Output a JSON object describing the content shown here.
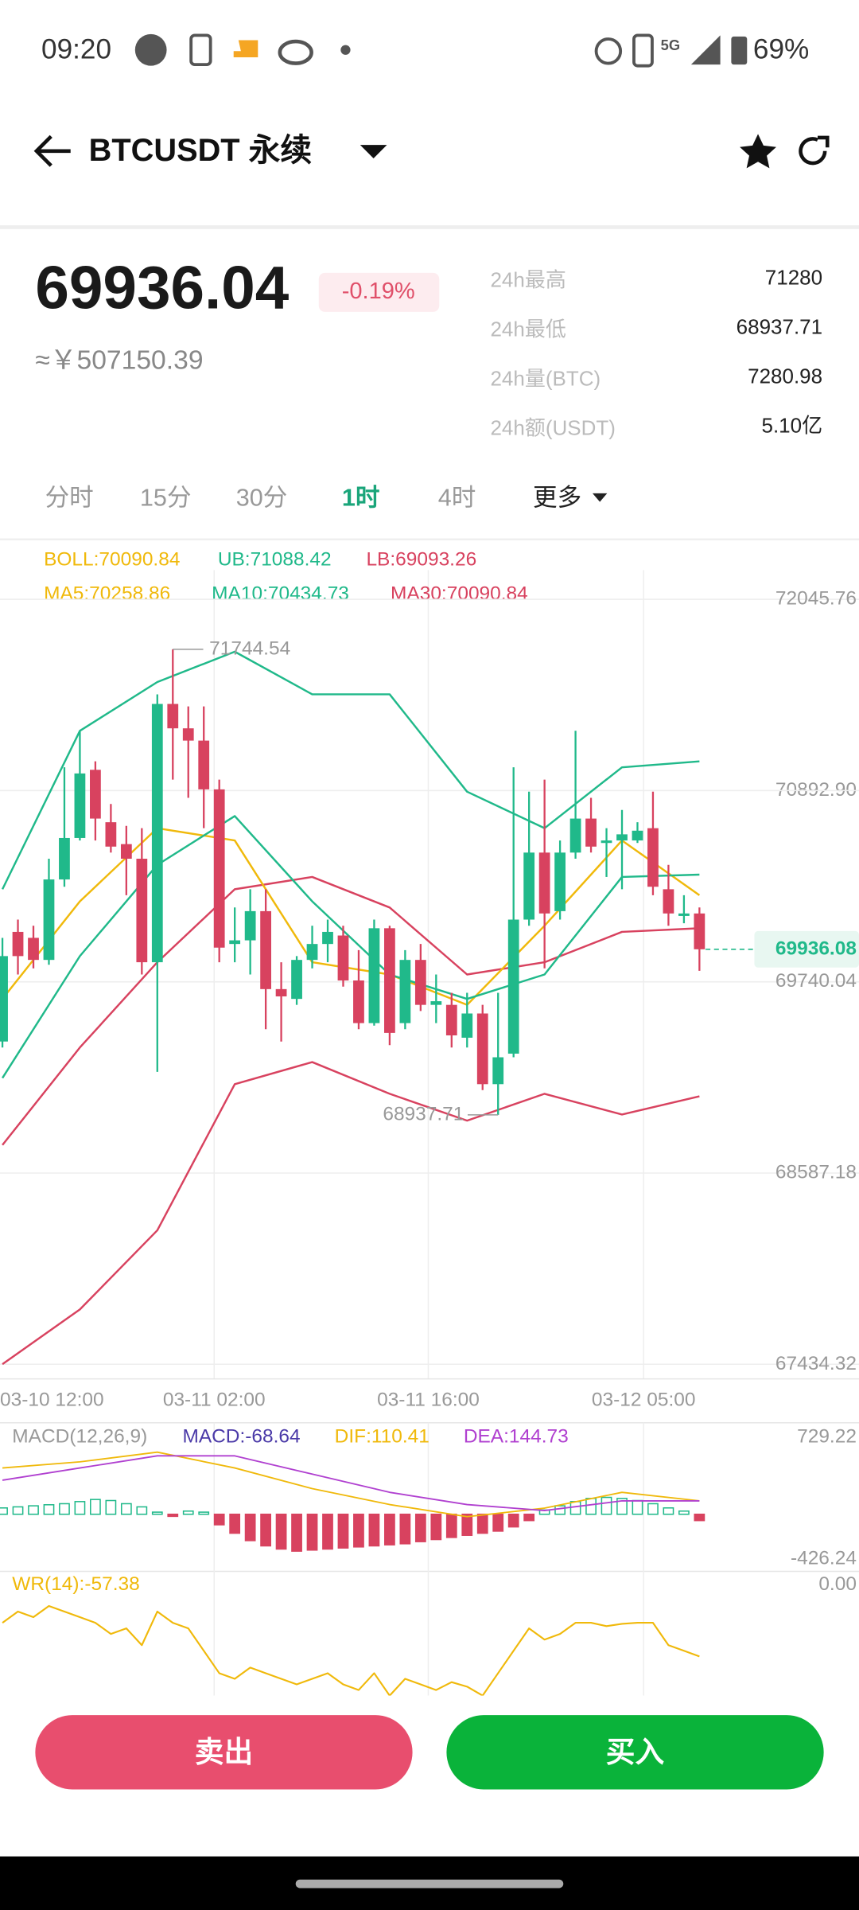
{
  "status_bar": {
    "time": "09:20",
    "network": "5G",
    "battery": "69%"
  },
  "header": {
    "title": "BTCUSDT 永续"
  },
  "ticker": {
    "price": "69936.04",
    "change": "-0.19%",
    "cny": "≈￥507150.39",
    "stats": [
      {
        "label": "24h最高",
        "value": "71280"
      },
      {
        "label": "24h最低",
        "value": "68937.71"
      },
      {
        "label": "24h量(BTC)",
        "value": "7280.98"
      },
      {
        "label": "24h额(USDT)",
        "value": "5.10亿"
      }
    ]
  },
  "tabs": [
    "分时",
    "15分",
    "30分",
    "1时",
    "4时",
    "更多"
  ],
  "chart": {
    "type": "candlestick",
    "up_color": "#20b98a",
    "down_color": "#d8425f",
    "legend": [
      [
        {
          "text": "BOLL:70090.84",
          "color": "#f0b90b"
        },
        {
          "text": "UB:71088.42",
          "color": "#20b98a"
        },
        {
          "text": "LB:69093.26",
          "color": "#d8425f"
        }
      ],
      [
        {
          "text": "MA5:70258.86",
          "color": "#f0b90b"
        },
        {
          "text": "MA10:70434.73",
          "color": "#20b98a"
        },
        {
          "text": "MA30:70090.84",
          "color": "#d8425f"
        }
      ]
    ],
    "ylim": [
      67434.32,
      72045.76
    ],
    "yticks": [
      72045.76,
      {
        "value": 70892.9,
        "label": "70892.90"
      },
      70892.9,
      69740.04,
      68587.18,
      67434.32
    ],
    "xlabels": [
      "03-10 12:00",
      "03-11 02:00",
      "03-11 16:00",
      "03-12 05:00"
    ],
    "candles": [
      {
        "open": 69380,
        "high": 70005,
        "low": 69344,
        "close": 69895
      },
      {
        "open": 70041,
        "high": 70115,
        "low": 69784,
        "close": 69895
      },
      {
        "open": 70005,
        "high": 70078,
        "low": 69821,
        "close": 69872
      },
      {
        "open": 69872,
        "high": 70482,
        "low": 69843,
        "close": 70357
      },
      {
        "open": 70357,
        "high": 71033,
        "low": 70313,
        "close": 70607
      },
      {
        "open": 70607,
        "high": 71253,
        "low": 70592,
        "close": 70996
      },
      {
        "open": 71018,
        "high": 71069,
        "low": 70592,
        "close": 70724
      },
      {
        "open": 70702,
        "high": 70812,
        "low": 70519,
        "close": 70555
      },
      {
        "open": 70570,
        "high": 70680,
        "low": 70262,
        "close": 70482
      },
      {
        "open": 70482,
        "high": 70666,
        "low": 69784,
        "close": 69858
      },
      {
        "open": 69858,
        "high": 71473,
        "low": 69197,
        "close": 71415
      },
      {
        "open": 71415,
        "high": 71744.54,
        "low": 70959,
        "close": 71268
      },
      {
        "open": 71268,
        "high": 71400,
        "low": 70849,
        "close": 71194
      },
      {
        "open": 71194,
        "high": 71400,
        "low": 70666,
        "close": 70900
      },
      {
        "open": 70900,
        "high": 70959,
        "low": 69858,
        "close": 69946
      },
      {
        "open": 69968,
        "high": 70188,
        "low": 69858,
        "close": 69990
      },
      {
        "open": 69990,
        "high": 70298,
        "low": 69784,
        "close": 70166
      },
      {
        "open": 70166,
        "high": 70298,
        "low": 69454,
        "close": 69696
      },
      {
        "open": 69696,
        "high": 69858,
        "low": 69380,
        "close": 69652
      },
      {
        "open": 69637,
        "high": 69895,
        "low": 69601,
        "close": 69872
      },
      {
        "open": 69872,
        "high": 70078,
        "low": 69821,
        "close": 69968
      },
      {
        "open": 69968,
        "high": 70115,
        "low": 69858,
        "close": 70041
      },
      {
        "open": 70019,
        "high": 70078,
        "low": 69711,
        "close": 69748
      },
      {
        "open": 69748,
        "high": 69931,
        "low": 69454,
        "close": 69491
      },
      {
        "open": 69491,
        "high": 70115,
        "low": 69476,
        "close": 70063
      },
      {
        "open": 70063,
        "high": 70078,
        "low": 69358,
        "close": 69432
      },
      {
        "open": 69491,
        "high": 69931,
        "low": 69454,
        "close": 69872
      },
      {
        "open": 69872,
        "high": 69968,
        "low": 69564,
        "close": 69601
      },
      {
        "open": 69601,
        "high": 69784,
        "low": 69491,
        "close": 69623
      },
      {
        "open": 69601,
        "high": 69674,
        "low": 69344,
        "close": 69417
      },
      {
        "open": 69403,
        "high": 69674,
        "low": 69344,
        "close": 69549
      },
      {
        "open": 69549,
        "high": 69601,
        "low": 69087,
        "close": 69123
      },
      {
        "open": 69123,
        "high": 69674,
        "low": 68937.71,
        "close": 69285
      },
      {
        "open": 69307,
        "high": 71033,
        "low": 69285,
        "close": 70115
      },
      {
        "open": 70115,
        "high": 70886,
        "low": 70078,
        "close": 70519
      },
      {
        "open": 70519,
        "high": 70959,
        "low": 69821,
        "close": 70152
      },
      {
        "open": 70166,
        "high": 70592,
        "low": 70115,
        "close": 70519
      },
      {
        "open": 70519,
        "high": 71253,
        "low": 70482,
        "close": 70724
      },
      {
        "open": 70724,
        "high": 70849,
        "low": 70519,
        "close": 70555
      },
      {
        "open": 70577,
        "high": 70666,
        "low": 70372,
        "close": 70592
      },
      {
        "open": 70592,
        "high": 70776,
        "low": 70298,
        "close": 70629
      },
      {
        "open": 70592,
        "high": 70702,
        "low": 70577,
        "close": 70651
      },
      {
        "open": 70666,
        "high": 70886,
        "low": 70262,
        "close": 70313
      },
      {
        "open": 70298,
        "high": 70445,
        "low": 70078,
        "close": 70152
      },
      {
        "open": 70137,
        "high": 70262,
        "low": 70093,
        "close": 70152
      },
      {
        "open": 70152,
        "high": 70188,
        "low": 69806,
        "close": 69936.08
      }
    ],
    "line_x": [
      0,
      5,
      10,
      15,
      20,
      25,
      30,
      35,
      40,
      45
    ],
    "lines": [
      {
        "color": "#20b98a",
        "values": [
          70298,
          71253,
          71547,
          71730,
          71473,
          71473,
          70886,
          70666,
          71033,
          71069
        ]
      },
      {
        "color": "#d8425f",
        "values": [
          67435,
          67765,
          68242,
          69123,
          69256,
          69065,
          68903,
          69065,
          68940,
          69050
        ]
      },
      {
        "color": "#d8425f",
        "values": [
          68756,
          69344,
          69858,
          70298,
          70372,
          70188,
          69784,
          69858,
          70041,
          70063
        ]
      },
      {
        "color": "#f0b90b",
        "values": [
          69637,
          70225,
          70666,
          70592,
          69858,
          69784,
          69601,
          70078,
          70592,
          70262
        ]
      },
      {
        "color": "#20b98a",
        "values": [
          69160,
          69895,
          70445,
          70739,
          70225,
          69784,
          69637,
          69784,
          70372,
          70386
        ]
      }
    ]
  },
  "macd": {
    "type": "bar",
    "legend": [
      {
        "text": "MACD(12,26,9)",
        "color": "#999999"
      },
      {
        "text": "MACD:-68.64",
        "color": "#4b3aa8"
      },
      {
        "text": "DIF:110.41",
        "color": "#f0b90b"
      },
      {
        "text": "DEA:144.73",
        "color": "#b040d0"
      }
    ],
    "ylim": [
      -426.24,
      729.22
    ],
    "yticks": [
      729.22,
      -426.24
    ],
    "histogram": [
      60,
      70,
      80,
      90,
      100,
      120,
      140,
      130,
      100,
      70,
      20,
      -20,
      30,
      20,
      -100,
      -180,
      -250,
      -300,
      -330,
      -350,
      -340,
      -330,
      -320,
      -310,
      -300,
      -290,
      -280,
      -260,
      -240,
      -220,
      -200,
      -180,
      -160,
      -120,
      -60,
      40,
      80,
      120,
      150,
      160,
      150,
      130,
      100,
      60,
      30,
      -60
    ],
    "dif": {
      "color": "#f0b90b",
      "values": [
        439,
        497,
        589,
        439,
        243,
        92,
        -23,
        58,
        208,
        127
      ]
    },
    "dea": {
      "color": "#b040d0",
      "values": [
        323,
        439,
        554,
        554,
        381,
        208,
        92,
        35,
        127,
        127
      ]
    }
  },
  "wr": {
    "type": "line",
    "legend": "WR(14):-57.38",
    "color": "#f0b90b",
    "ylim": [
      -100,
      0
    ],
    "yticks": [
      {
        "value": 0,
        "label": "0.00"
      }
    ],
    "values": [
      -35,
      -25,
      -30,
      -20,
      -25,
      -30,
      -35,
      -45,
      -40,
      -55,
      -25,
      -35,
      -40,
      -60,
      -80,
      -85,
      -75,
      -80,
      -85,
      -90,
      -85,
      -80,
      -90,
      -95,
      -80,
      -100,
      -85,
      -90,
      -95,
      -88,
      -92,
      -100,
      -80,
      -60,
      -40,
      -50,
      -45,
      -35,
      -35,
      -38,
      -36,
      -35,
      -35,
      -55,
      -60,
      -65
    ]
  },
  "buttons": {
    "sell": "卖出",
    "buy": "买入"
  }
}
